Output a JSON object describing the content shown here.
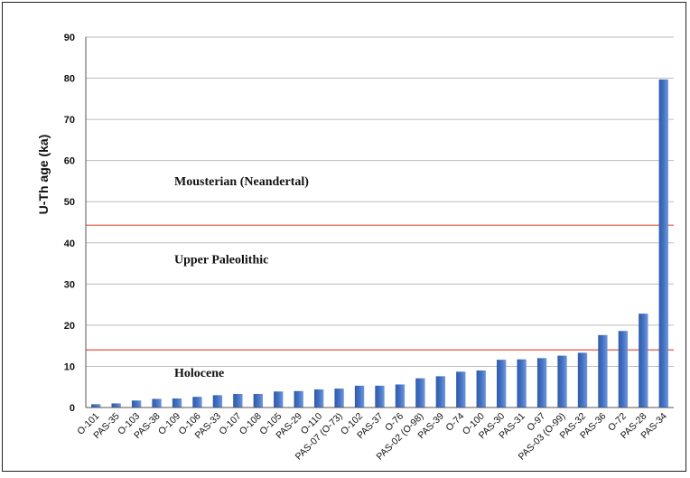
{
  "chart_data": {
    "type": "bar",
    "ylabel": "U-Th age (ka)",
    "ylim": [
      0,
      90
    ],
    "yticks": [
      0,
      10,
      20,
      30,
      40,
      50,
      60,
      70,
      80,
      90
    ],
    "grid": true,
    "categories": [
      "O-101",
      "PAS-35",
      "O-103",
      "PAS-38",
      "O-109",
      "O-106",
      "PAS-33",
      "O-107",
      "O-108",
      "O-105",
      "PAS-29",
      "O-110",
      "PAS-07 (O-73)",
      "O-102",
      "PAS-37",
      "O-76",
      "PAS-02 (O-98)",
      "PAS-39",
      "O-74",
      "O-100",
      "PAS-30",
      "PAS-31",
      "O-97",
      "PAS-03 (O-99)",
      "PAS-32",
      "PAS-36",
      "O-72",
      "PAS-28",
      "PAS-34"
    ],
    "values": [
      0.8,
      1.0,
      1.7,
      2.1,
      2.2,
      2.6,
      3.0,
      3.3,
      3.3,
      3.9,
      4.0,
      4.4,
      4.6,
      5.3,
      5.3,
      5.6,
      7.1,
      7.6,
      8.7,
      9.0,
      11.6,
      11.7,
      12.0,
      12.6,
      13.3,
      17.6,
      18.6,
      22.8,
      79.7
    ],
    "bar_color": "#4472c4",
    "reference_lines": [
      {
        "y": 14.0,
        "color": "#e0533a"
      },
      {
        "y": 44.3,
        "color": "#e0533a"
      }
    ],
    "annotations": [
      {
        "text": "Mousterian (Neandertal)",
        "y": 54
      },
      {
        "text": "Upper Paleolithic",
        "y": 35
      },
      {
        "text": "Holocene",
        "y": 7.5
      }
    ]
  }
}
